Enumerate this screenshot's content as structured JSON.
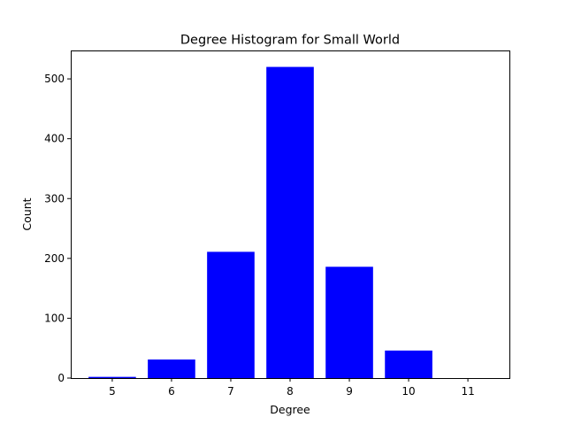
{
  "chart_data": {
    "type": "bar",
    "title": "Degree Histogram for Small World",
    "xlabel": "Degree",
    "ylabel": "Count",
    "categories": [
      "5",
      "6",
      "7",
      "8",
      "9",
      "10",
      "11"
    ],
    "x": [
      5,
      6,
      7,
      8,
      9,
      10,
      11
    ],
    "values": [
      2,
      31,
      211,
      520,
      186,
      46,
      0
    ],
    "xlim": [
      4.3,
      11.7
    ],
    "ylim": [
      0,
      546
    ],
    "yticks": [
      0,
      100,
      200,
      300,
      400,
      500
    ],
    "grid": false,
    "legend": "none",
    "bar_color": "#0000ff"
  }
}
